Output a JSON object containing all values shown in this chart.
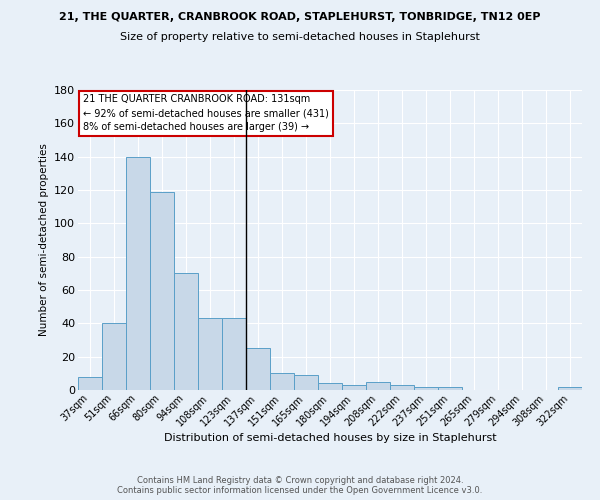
{
  "title": "21, THE QUARTER, CRANBROOK ROAD, STAPLEHURST, TONBRIDGE, TN12 0EP",
  "subtitle": "Size of property relative to semi-detached houses in Staplehurst",
  "xlabel": "Distribution of semi-detached houses by size in Staplehurst",
  "footer1": "Contains HM Land Registry data © Crown copyright and database right 2024.",
  "footer2": "Contains public sector information licensed under the Open Government Licence v3.0.",
  "categories": [
    "37sqm",
    "51sqm",
    "66sqm",
    "80sqm",
    "94sqm",
    "108sqm",
    "123sqm",
    "137sqm",
    "151sqm",
    "165sqm",
    "180sqm",
    "194sqm",
    "208sqm",
    "222sqm",
    "237sqm",
    "251sqm",
    "265sqm",
    "279sqm",
    "294sqm",
    "308sqm",
    "322sqm"
  ],
  "values": [
    8,
    40,
    140,
    119,
    70,
    43,
    43,
    25,
    10,
    9,
    4,
    3,
    5,
    3,
    2,
    2,
    0,
    0,
    0,
    0,
    2
  ],
  "bar_color": "#c8d8e8",
  "bar_edge_color": "#5a9fc8",
  "grid_color": "#ffffff",
  "bg_color": "#e8f0f8",
  "annotation_line1": "21 THE QUARTER CRANBROOK ROAD: 131sqm",
  "annotation_line2": "← 92% of semi-detached houses are smaller (431)",
  "annotation_line3": "8% of semi-detached houses are larger (39) →",
  "vline_x_index": 6.5,
  "vline_color": "black",
  "annotation_box_color": "#ffffff",
  "annotation_box_edge": "#cc0000",
  "ylim": [
    0,
    180
  ],
  "yticks": [
    0,
    20,
    40,
    60,
    80,
    100,
    120,
    140,
    160,
    180
  ]
}
